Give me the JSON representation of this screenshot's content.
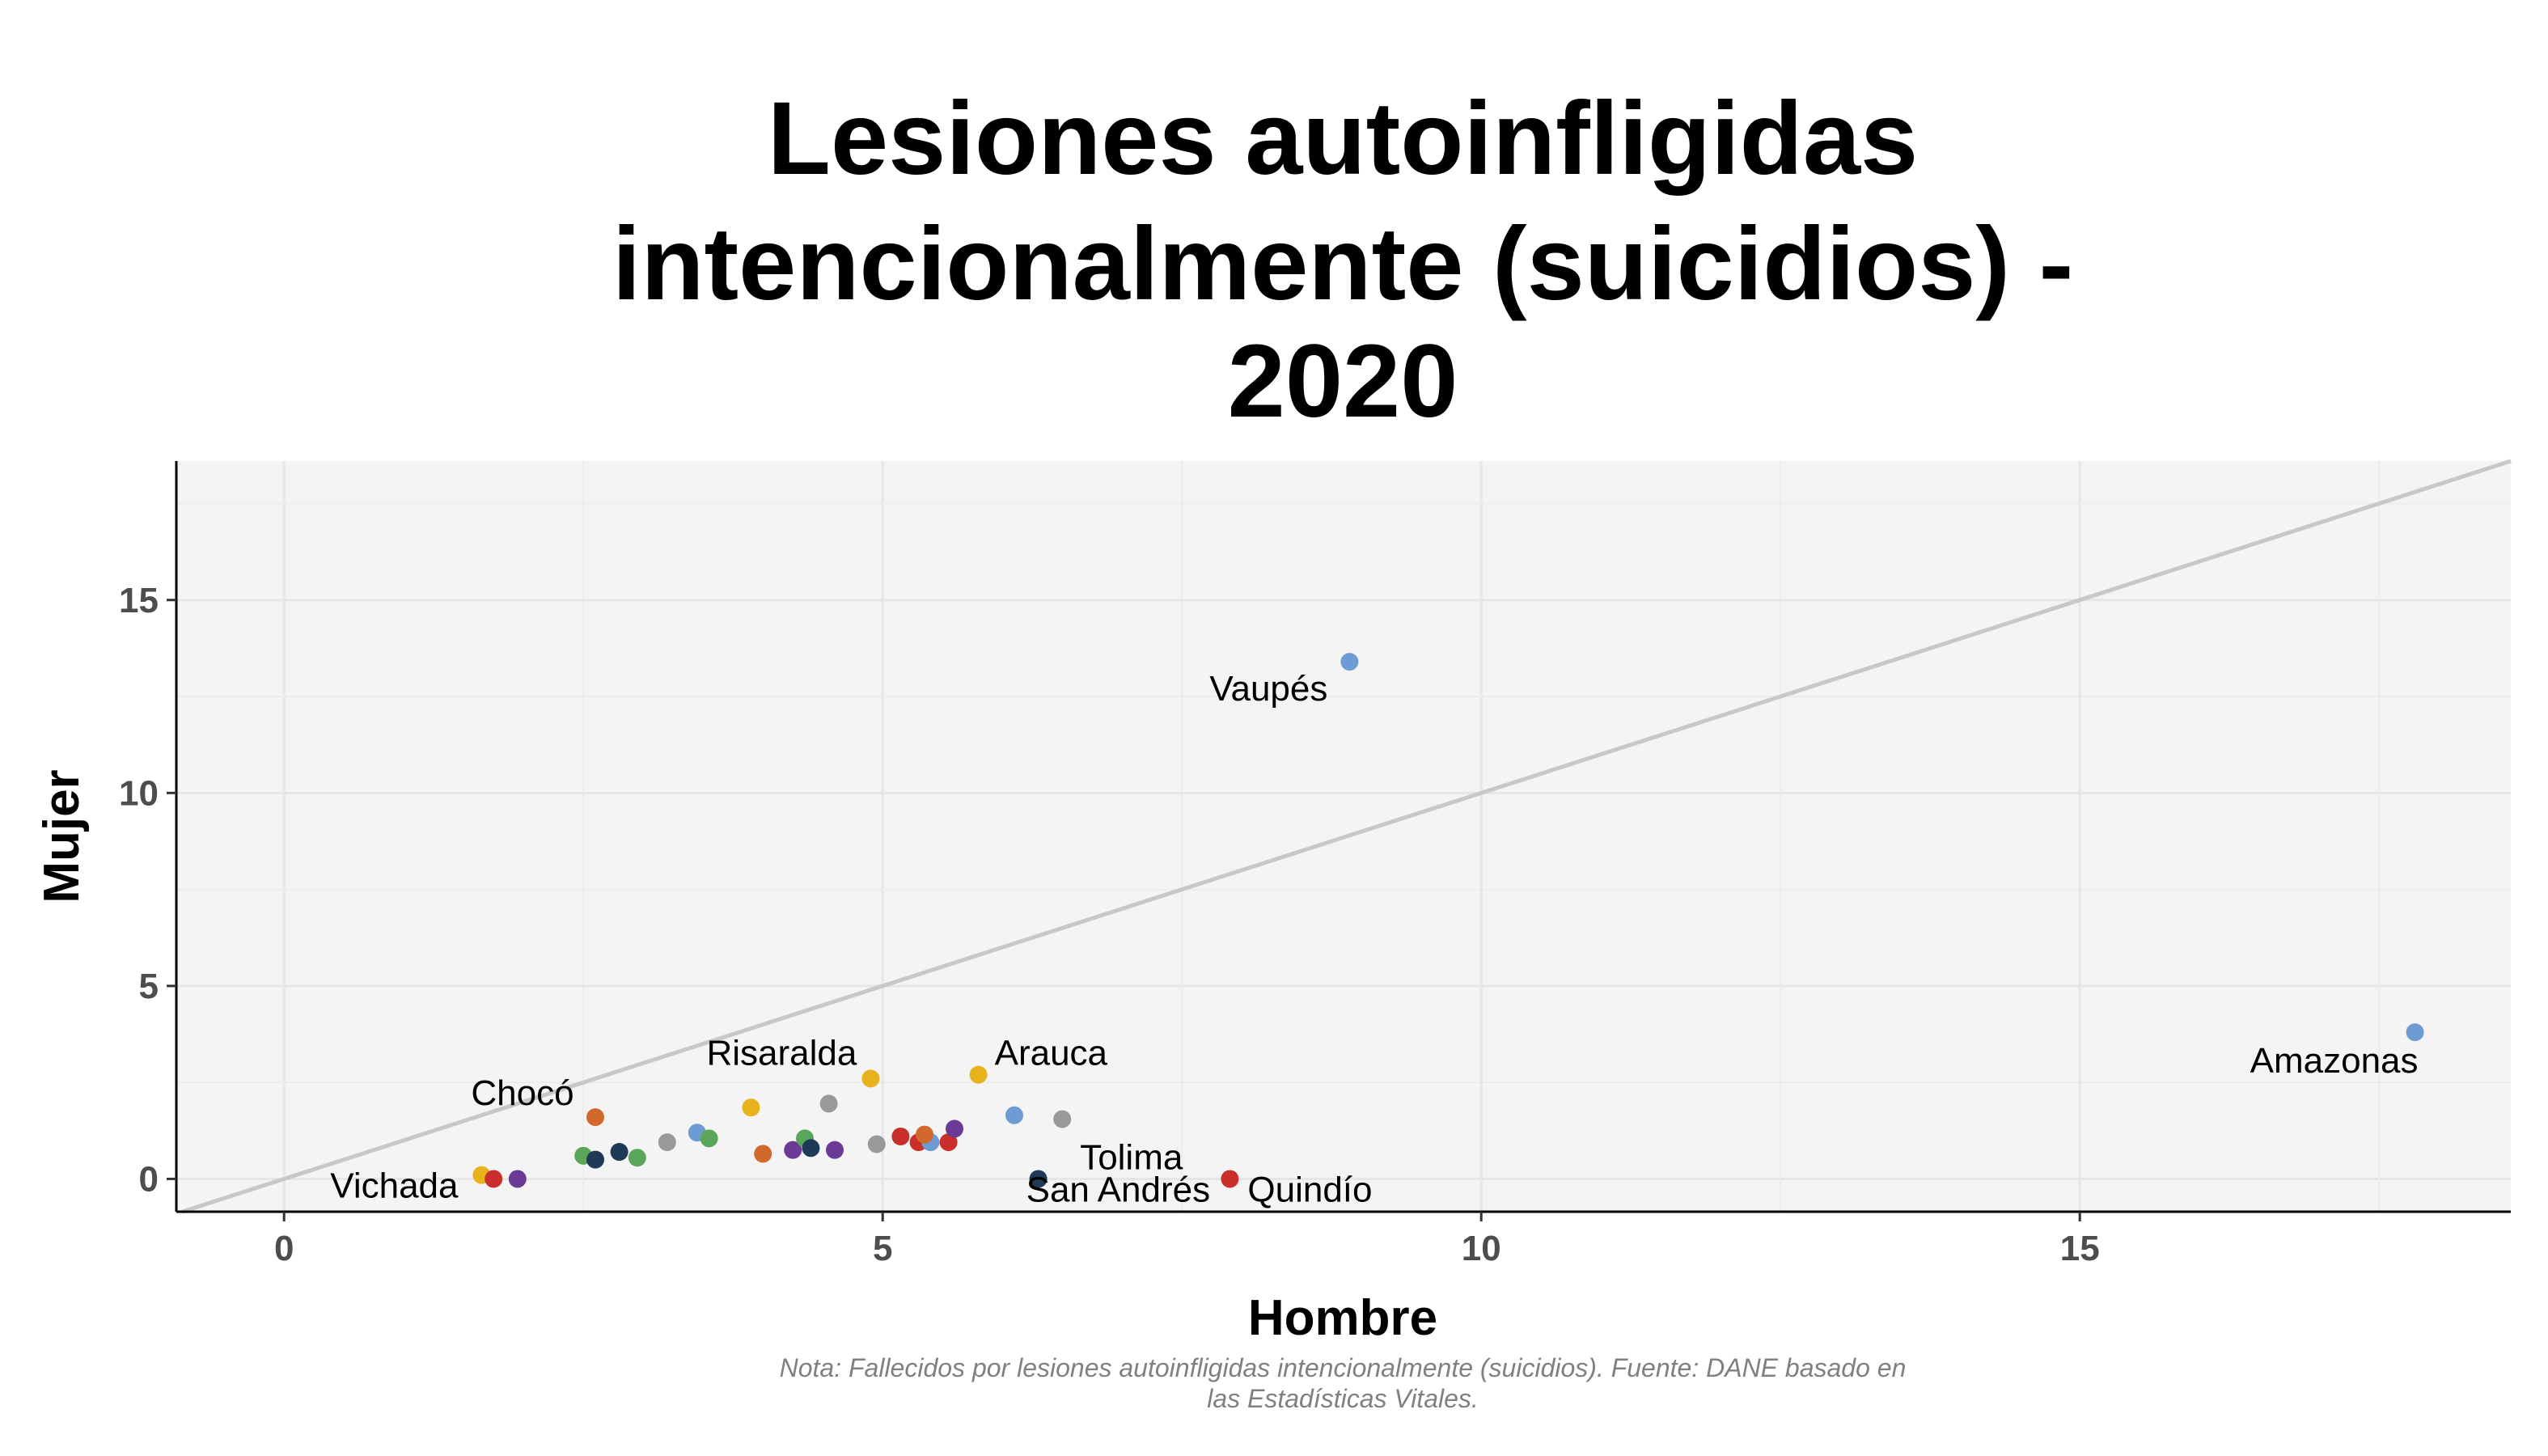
{
  "chart_data": {
    "type": "scatter",
    "title_lines": [
      "Lesiones autoinfligidas",
      "intencionalmente (suicidios) -",
      "2020"
    ],
    "xlabel": "Hombre",
    "ylabel": "Mujer",
    "xlim": [
      -0.9,
      18.6
    ],
    "ylim": [
      -0.85,
      18.6
    ],
    "x_ticks": [
      0,
      5,
      10,
      15
    ],
    "y_ticks": [
      0,
      5,
      10,
      15
    ],
    "grid": true,
    "reference_line": {
      "type": "identity",
      "slope": 1,
      "intercept": 0,
      "color": "#c8c8c8"
    },
    "caption_lines": [
      "Nota: Fallecidos por lesiones autoinfligidas intencionalmente (suicidios). Fuente: DANE basado en",
      "las Estadísticas Vitales."
    ],
    "points": [
      {
        "x": 17.8,
        "y": 3.8,
        "label": "Amazonas",
        "color": "#6f9bd5"
      },
      {
        "x": 8.9,
        "y": 13.4,
        "label": "Vaupés",
        "color": "#6f9bd5"
      },
      {
        "x": 5.8,
        "y": 2.7,
        "label": "Arauca",
        "color": "#e8b21e"
      },
      {
        "x": 4.9,
        "y": 2.6,
        "label": "Risaralda",
        "color": "#e8b21e"
      },
      {
        "x": 2.6,
        "y": 1.6,
        "label": "Chocó",
        "color": "#d1692d"
      },
      {
        "x": 6.5,
        "y": 1.55,
        "label": "Tolima",
        "color": "#999999"
      },
      {
        "x": 1.65,
        "y": 0.1,
        "label": "Vichada",
        "color": "#e8b21e"
      },
      {
        "x": 6.3,
        "y": 0.0,
        "label": "San Andrés",
        "color": "#1f3a57"
      },
      {
        "x": 7.9,
        "y": 0.0,
        "label": "Quindío",
        "color": "#c9302c"
      },
      {
        "x": 1.75,
        "y": 0.0,
        "color": "#c9302c"
      },
      {
        "x": 1.95,
        "y": 0.0,
        "color": "#6b3a96"
      },
      {
        "x": 2.5,
        "y": 0.6,
        "color": "#5aa65a"
      },
      {
        "x": 2.6,
        "y": 0.5,
        "color": "#1f3a57"
      },
      {
        "x": 2.8,
        "y": 0.7,
        "color": "#1f3a57"
      },
      {
        "x": 2.95,
        "y": 0.55,
        "color": "#5aa65a"
      },
      {
        "x": 3.2,
        "y": 0.95,
        "color": "#999999"
      },
      {
        "x": 3.45,
        "y": 1.2,
        "color": "#6f9bd5"
      },
      {
        "x": 3.55,
        "y": 1.05,
        "color": "#5aa65a"
      },
      {
        "x": 3.9,
        "y": 1.85,
        "color": "#e8b21e"
      },
      {
        "x": 4.0,
        "y": 0.65,
        "color": "#d1692d"
      },
      {
        "x": 4.25,
        "y": 0.75,
        "color": "#6b3a96"
      },
      {
        "x": 4.35,
        "y": 1.05,
        "color": "#5aa65a"
      },
      {
        "x": 4.4,
        "y": 0.8,
        "color": "#1f3a57"
      },
      {
        "x": 4.55,
        "y": 1.95,
        "color": "#999999"
      },
      {
        "x": 4.6,
        "y": 0.75,
        "color": "#6b3a96"
      },
      {
        "x": 4.95,
        "y": 0.9,
        "color": "#999999"
      },
      {
        "x": 5.15,
        "y": 1.1,
        "color": "#c9302c"
      },
      {
        "x": 5.3,
        "y": 0.95,
        "color": "#c9302c"
      },
      {
        "x": 5.4,
        "y": 0.95,
        "color": "#6f9bd5"
      },
      {
        "x": 5.35,
        "y": 1.15,
        "color": "#d1692d"
      },
      {
        "x": 5.55,
        "y": 0.95,
        "color": "#c9302c"
      },
      {
        "x": 5.6,
        "y": 1.3,
        "color": "#6b3a96"
      },
      {
        "x": 6.1,
        "y": 1.65,
        "color": "#6f9bd5"
      }
    ]
  }
}
